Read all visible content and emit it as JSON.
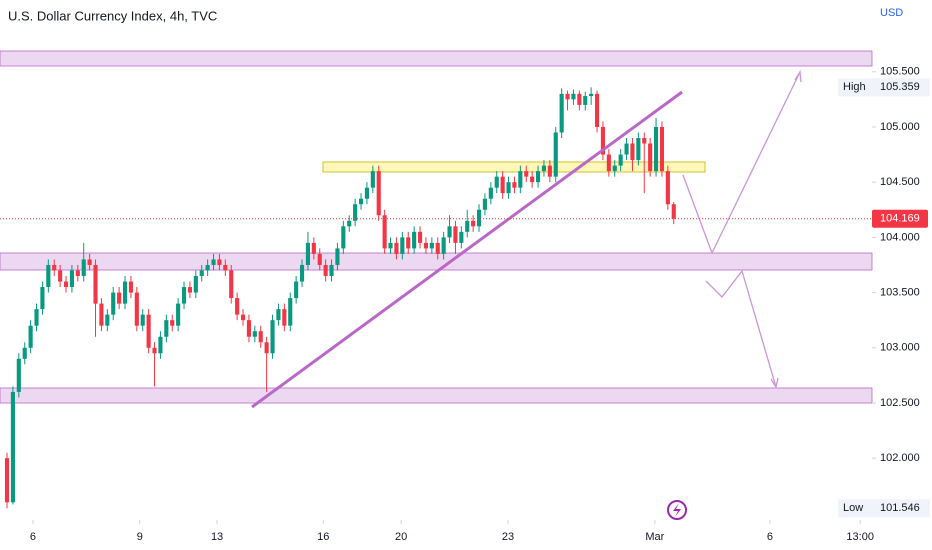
{
  "chart_data": {
    "type": "candlestick",
    "title": "U.S. Dollar Currency Index, 4h, TVC",
    "currency": "USD",
    "up_color": "#089981",
    "down_color": "#f23645",
    "open": [
      102.0,
      101.6,
      102.6,
      102.9,
      103.0,
      103.2,
      103.35,
      103.55,
      103.75,
      103.7,
      103.6,
      103.55,
      103.7,
      103.65,
      103.8,
      103.75,
      103.4,
      103.2,
      103.3,
      103.5,
      103.4,
      103.6,
      103.5,
      103.2,
      103.3,
      103.0,
      102.95,
      103.1,
      103.25,
      103.2,
      103.4,
      103.55,
      103.5,
      103.65,
      103.7,
      103.75,
      103.8,
      103.75,
      103.7,
      103.45,
      103.3,
      103.25,
      103.1,
      103.15,
      103.05,
      102.95,
      103.25,
      103.35,
      103.2,
      103.45,
      103.6,
      103.75,
      103.95,
      103.85,
      103.75,
      103.65,
      103.75,
      103.9,
      104.1,
      104.15,
      104.3,
      104.35,
      104.45,
      104.6,
      104.2,
      103.9,
      103.95,
      103.85,
      104.0,
      103.9,
      104.05,
      103.95,
      103.9,
      103.95,
      103.85,
      104.0,
      104.1,
      103.95,
      104.05,
      104.15,
      104.1,
      104.25,
      104.35,
      104.45,
      104.55,
      104.4,
      104.5,
      104.45,
      104.6,
      104.55,
      104.5,
      104.6,
      104.65,
      104.55,
      104.95,
      105.3,
      105.25,
      105.3,
      105.2,
      105.28,
      105.3,
      105.0,
      104.75,
      104.6,
      104.65,
      104.75,
      104.85,
      104.7,
      104.9,
      104.85,
      104.6,
      105.0,
      104.6,
      104.3
    ],
    "high": [
      102.05,
      102.65,
      102.95,
      103.05,
      103.25,
      103.4,
      103.6,
      103.8,
      103.8,
      103.75,
      103.65,
      103.75,
      103.75,
      103.95,
      103.85,
      103.8,
      103.45,
      103.35,
      103.55,
      103.55,
      103.65,
      103.65,
      103.55,
      103.35,
      103.35,
      103.05,
      103.15,
      103.3,
      103.3,
      103.45,
      103.6,
      103.6,
      103.7,
      103.75,
      103.8,
      103.85,
      103.85,
      103.8,
      103.75,
      103.5,
      103.35,
      103.3,
      103.2,
      103.2,
      103.1,
      103.3,
      103.4,
      103.4,
      103.5,
      103.65,
      103.8,
      104.05,
      104.0,
      103.9,
      103.8,
      103.8,
      103.95,
      104.15,
      104.2,
      104.35,
      104.4,
      104.5,
      104.65,
      104.65,
      104.25,
      104.0,
      104.0,
      104.05,
      104.05,
      104.1,
      104.1,
      104.0,
      104.0,
      104.0,
      104.05,
      104.2,
      104.15,
      104.1,
      104.25,
      104.2,
      104.3,
      104.4,
      104.5,
      104.6,
      104.6,
      104.55,
      104.55,
      104.65,
      104.65,
      104.6,
      104.65,
      104.7,
      104.7,
      105.0,
      105.35,
      105.33,
      105.34,
      105.33,
      105.32,
      105.359,
      105.33,
      105.05,
      104.8,
      104.7,
      104.8,
      104.9,
      104.9,
      104.95,
      104.95,
      104.9,
      105.08,
      105.05,
      104.65,
      104.32
    ],
    "low": [
      101.546,
      101.58,
      102.55,
      102.85,
      102.95,
      103.15,
      103.3,
      103.5,
      103.65,
      103.55,
      103.5,
      103.5,
      103.6,
      103.6,
      103.7,
      103.1,
      103.15,
      103.15,
      103.25,
      103.35,
      103.35,
      103.45,
      103.15,
      103.15,
      102.95,
      102.65,
      102.9,
      103.05,
      103.15,
      103.15,
      103.35,
      103.45,
      103.45,
      103.6,
      103.65,
      103.7,
      103.7,
      103.65,
      103.4,
      103.25,
      103.2,
      103.05,
      103.05,
      103.0,
      102.6,
      102.9,
      103.2,
      103.15,
      103.15,
      103.4,
      103.55,
      103.7,
      103.8,
      103.7,
      103.6,
      103.6,
      103.7,
      103.85,
      104.05,
      104.1,
      104.25,
      104.3,
      104.4,
      104.15,
      103.85,
      103.85,
      103.8,
      103.8,
      103.85,
      103.85,
      103.9,
      103.85,
      103.85,
      103.8,
      103.8,
      103.95,
      103.85,
      103.9,
      104.0,
      104.05,
      104.05,
      104.2,
      104.3,
      104.4,
      104.35,
      104.35,
      104.4,
      104.4,
      104.5,
      104.45,
      104.45,
      104.55,
      104.5,
      104.5,
      104.9,
      105.15,
      105.2,
      105.15,
      105.15,
      105.2,
      104.95,
      104.7,
      104.55,
      104.55,
      104.6,
      104.7,
      104.6,
      104.65,
      104.4,
      104.55,
      104.55,
      104.55,
      104.25,
      104.12
    ],
    "close": [
      101.6,
      102.6,
      102.9,
      103.0,
      103.2,
      103.35,
      103.55,
      103.75,
      103.7,
      103.6,
      103.55,
      103.7,
      103.65,
      103.8,
      103.75,
      103.4,
      103.2,
      103.3,
      103.5,
      103.4,
      103.6,
      103.5,
      103.2,
      103.3,
      103.0,
      102.95,
      103.1,
      103.25,
      103.2,
      103.4,
      103.55,
      103.5,
      103.65,
      103.7,
      103.75,
      103.8,
      103.75,
      103.7,
      103.45,
      103.3,
      103.25,
      103.1,
      103.15,
      103.05,
      102.95,
      103.25,
      103.35,
      103.2,
      103.45,
      103.6,
      103.75,
      103.95,
      103.85,
      103.75,
      103.65,
      103.75,
      103.9,
      104.1,
      104.15,
      104.3,
      104.35,
      104.45,
      104.6,
      104.2,
      103.9,
      103.95,
      103.85,
      104.0,
      103.9,
      104.05,
      103.95,
      103.9,
      103.95,
      103.85,
      104.0,
      104.1,
      103.95,
      104.05,
      104.15,
      104.1,
      104.25,
      104.35,
      104.45,
      104.55,
      104.4,
      104.5,
      104.45,
      104.6,
      104.55,
      104.5,
      104.6,
      104.65,
      104.55,
      104.95,
      105.3,
      105.25,
      105.3,
      105.2,
      105.28,
      105.3,
      105.0,
      104.75,
      104.6,
      104.65,
      104.75,
      104.85,
      104.7,
      104.9,
      104.85,
      104.6,
      105.0,
      104.6,
      104.3,
      104.169
    ],
    "last_price": 104.169,
    "high_marker": {
      "label": "High",
      "value": 105.359
    },
    "low_marker": {
      "label": "Low",
      "value": 101.546
    },
    "ylim": [
      101.44,
      106.15
    ],
    "yticks": [
      {
        "value": 102.0,
        "label": "102.000"
      },
      {
        "value": 102.5,
        "label": "102.500"
      },
      {
        "value": 103.0,
        "label": "103.000"
      },
      {
        "value": 103.5,
        "label": "103.500"
      },
      {
        "value": 104.0,
        "label": "104.000"
      },
      {
        "value": 104.5,
        "label": "104.500"
      },
      {
        "value": 105.0,
        "label": "105.000"
      },
      {
        "value": 105.5,
        "label": "105.500"
      }
    ],
    "xlim": [
      -1.19,
      146.6
    ],
    "xticks": [
      {
        "value": 4.4,
        "label": "6"
      },
      {
        "value": 22.5,
        "label": "9"
      },
      {
        "value": 35.6,
        "label": "13"
      },
      {
        "value": 53.6,
        "label": "16"
      },
      {
        "value": 66.8,
        "label": "20"
      },
      {
        "value": 84.9,
        "label": "23"
      },
      {
        "value": 109.8,
        "label": "Mar"
      },
      {
        "value": 129.3,
        "label": "6"
      },
      {
        "value": 144.6,
        "label": "13:00"
      }
    ]
  }
}
